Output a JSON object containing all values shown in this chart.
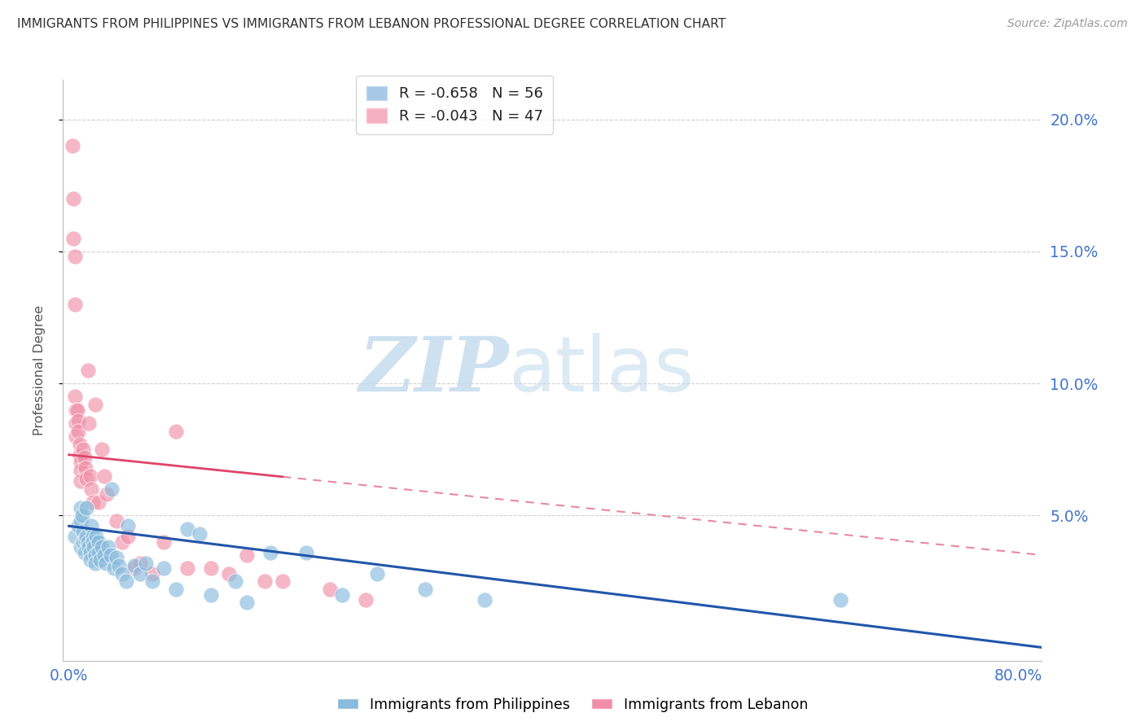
{
  "title": "IMMIGRANTS FROM PHILIPPINES VS IMMIGRANTS FROM LEBANON PROFESSIONAL DEGREE CORRELATION CHART",
  "source": "Source: ZipAtlas.com",
  "ylabel": "Professional Degree",
  "ylim": [
    -0.005,
    0.215
  ],
  "xlim": [
    -0.005,
    0.82
  ],
  "yticks": [
    0.05,
    0.1,
    0.15,
    0.2
  ],
  "ytick_labels": [
    "5.0%",
    "10.0%",
    "15.0%",
    "20.0%"
  ],
  "philippines_color": "#88bbdd",
  "lebanon_color": "#f090a8",
  "philippines_label": "Immigrants from Philippines",
  "lebanon_label": "Immigrants from Lebanon",
  "philippines_trend_color": "#2255aa",
  "lebanon_trend_solid_color": "#e04468",
  "lebanon_trend_dash_color": "#e888a0",
  "background_color": "#ffffff",
  "grid_color": "#d0d0d0",
  "tick_label_color": "#4477cc",
  "title_color": "#333333",
  "philippines_x": [
    0.005,
    0.008,
    0.01,
    0.01,
    0.01,
    0.011,
    0.012,
    0.012,
    0.013,
    0.014,
    0.015,
    0.015,
    0.016,
    0.017,
    0.018,
    0.018,
    0.019,
    0.02,
    0.02,
    0.021,
    0.022,
    0.022,
    0.023,
    0.025,
    0.025,
    0.026,
    0.028,
    0.03,
    0.031,
    0.033,
    0.035,
    0.036,
    0.038,
    0.04,
    0.042,
    0.045,
    0.048,
    0.05,
    0.055,
    0.06,
    0.065,
    0.07,
    0.08,
    0.09,
    0.1,
    0.11,
    0.12,
    0.14,
    0.15,
    0.17,
    0.2,
    0.23,
    0.26,
    0.3,
    0.35,
    0.65
  ],
  "philippines_y": [
    0.042,
    0.046,
    0.053,
    0.048,
    0.038,
    0.05,
    0.044,
    0.04,
    0.036,
    0.041,
    0.053,
    0.042,
    0.04,
    0.038,
    0.036,
    0.033,
    0.046,
    0.042,
    0.04,
    0.038,
    0.035,
    0.032,
    0.042,
    0.04,
    0.036,
    0.033,
    0.038,
    0.035,
    0.032,
    0.038,
    0.035,
    0.06,
    0.03,
    0.034,
    0.031,
    0.028,
    0.025,
    0.046,
    0.031,
    0.028,
    0.032,
    0.025,
    0.03,
    0.022,
    0.045,
    0.043,
    0.02,
    0.025,
    0.017,
    0.036,
    0.036,
    0.02,
    0.028,
    0.022,
    0.018,
    0.018
  ],
  "lebanon_x": [
    0.003,
    0.004,
    0.004,
    0.005,
    0.005,
    0.005,
    0.006,
    0.006,
    0.006,
    0.007,
    0.008,
    0.008,
    0.009,
    0.009,
    0.01,
    0.01,
    0.01,
    0.012,
    0.013,
    0.014,
    0.015,
    0.016,
    0.017,
    0.018,
    0.019,
    0.02,
    0.022,
    0.025,
    0.028,
    0.03,
    0.032,
    0.04,
    0.045,
    0.05,
    0.055,
    0.06,
    0.07,
    0.08,
    0.09,
    0.1,
    0.12,
    0.135,
    0.15,
    0.165,
    0.18,
    0.22,
    0.25
  ],
  "lebanon_y": [
    0.19,
    0.17,
    0.155,
    0.148,
    0.13,
    0.095,
    0.09,
    0.085,
    0.08,
    0.09,
    0.086,
    0.082,
    0.077,
    0.073,
    0.07,
    0.067,
    0.063,
    0.075,
    0.072,
    0.068,
    0.064,
    0.105,
    0.085,
    0.065,
    0.06,
    0.055,
    0.092,
    0.055,
    0.075,
    0.065,
    0.058,
    0.048,
    0.04,
    0.042,
    0.03,
    0.032,
    0.028,
    0.04,
    0.082,
    0.03,
    0.03,
    0.028,
    0.035,
    0.025,
    0.025,
    0.022,
    0.018
  ],
  "phil_trend_y0": 0.046,
  "phil_trend_y1": 0.0,
  "leb_trend_y0": 0.073,
  "leb_trend_y1": 0.035,
  "leb_solid_xend": 0.18
}
